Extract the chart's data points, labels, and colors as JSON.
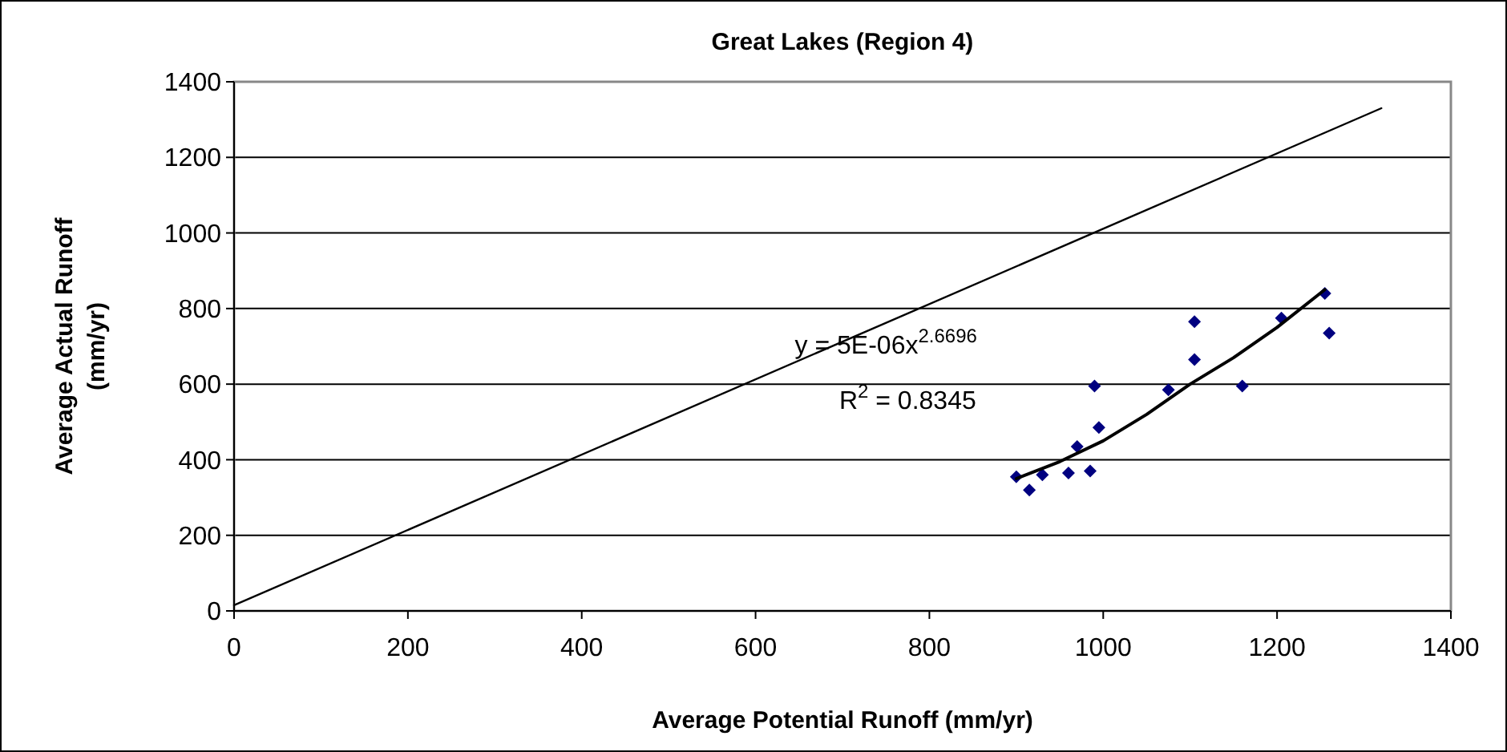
{
  "chart_data": {
    "type": "scatter",
    "title": "Great Lakes (Region 4)",
    "xlabel": "Average Potential Runoff (mm/yr)",
    "ylabel": "Average Actual Runoff (mm/yr)",
    "xlim": [
      0,
      1400
    ],
    "ylim": [
      0,
      1400
    ],
    "xticks": [
      0,
      200,
      400,
      600,
      800,
      1000,
      1200,
      1400
    ],
    "yticks": [
      0,
      200,
      400,
      600,
      800,
      1000,
      1200,
      1400
    ],
    "grid": "y",
    "marker": "diamond",
    "series": [
      {
        "type": "line",
        "marker": "none",
        "color": "#000000",
        "x": [
          0,
          1320
        ],
        "values": [
          15,
          1330
        ]
      },
      {
        "color": "#000080",
        "x": [
          900,
          915,
          930,
          960,
          970,
          985,
          990,
          995,
          1075,
          1105,
          1105,
          1160,
          1205,
          1255,
          1260
        ],
        "values": [
          355,
          320,
          360,
          365,
          435,
          370,
          595,
          485,
          585,
          765,
          665,
          595,
          775,
          840,
          735
        ]
      },
      {
        "type": "line",
        "marker": "none",
        "color": "#000000",
        "x": [
          900,
          950,
          1000,
          1050,
          1100,
          1150,
          1200,
          1255
        ],
        "values": [
          350,
          395,
          450,
          520,
          600,
          670,
          750,
          850
        ]
      }
    ],
    "annotations": [
      "y = 5E-06x$^{2.6696}$",
      "R$^{2}$ = 0.8345"
    ]
  }
}
